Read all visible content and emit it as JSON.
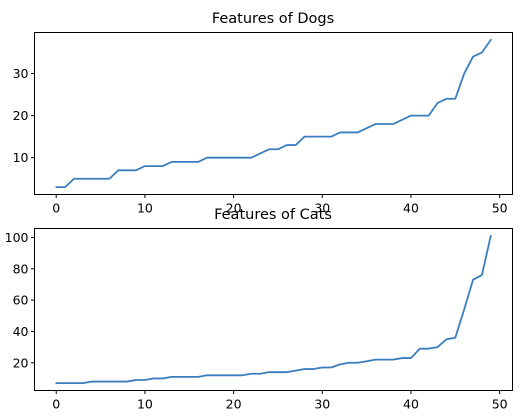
{
  "chart_data": [
    {
      "type": "line",
      "title": "Features of Dogs",
      "xlabel": "",
      "ylabel": "",
      "xlim": [
        -2.45,
        51.45
      ],
      "ylim": [
        1.25,
        39.75
      ],
      "xticks": [
        0,
        10,
        20,
        30,
        40,
        50
      ],
      "yticks": [
        10,
        20,
        30
      ],
      "grid": false,
      "color": "#3a7ebf",
      "x": [
        0,
        1,
        2,
        3,
        4,
        5,
        6,
        7,
        8,
        9,
        10,
        11,
        12,
        13,
        14,
        15,
        16,
        17,
        18,
        19,
        20,
        21,
        22,
        23,
        24,
        25,
        26,
        27,
        28,
        29,
        30,
        31,
        32,
        33,
        34,
        35,
        36,
        37,
        38,
        39,
        40,
        41,
        42,
        43,
        44,
        45,
        46,
        47,
        48,
        49
      ],
      "values": [
        3,
        3,
        5,
        5,
        5,
        5,
        5,
        7,
        7,
        7,
        8,
        8,
        8,
        9,
        9,
        9,
        9,
        10,
        10,
        10,
        10,
        10,
        10,
        11,
        12,
        12,
        13,
        13,
        15,
        15,
        15,
        15,
        16,
        16,
        16,
        17,
        18,
        18,
        18,
        19,
        20,
        20,
        20,
        23,
        24,
        24,
        30,
        34,
        35,
        38
      ]
    },
    {
      "type": "line",
      "title": "Features of Cats",
      "xlabel": "",
      "ylabel": "",
      "xlim": [
        -2.45,
        51.45
      ],
      "ylim": [
        2.3,
        105.7
      ],
      "xticks": [
        0,
        10,
        20,
        30,
        40,
        50
      ],
      "yticks": [
        20,
        40,
        60,
        80,
        100
      ],
      "grid": false,
      "color": "#3a7ebf",
      "x": [
        0,
        1,
        2,
        3,
        4,
        5,
        6,
        7,
        8,
        9,
        10,
        11,
        12,
        13,
        14,
        15,
        16,
        17,
        18,
        19,
        20,
        21,
        22,
        23,
        24,
        25,
        26,
        27,
        28,
        29,
        30,
        31,
        32,
        33,
        34,
        35,
        36,
        37,
        38,
        39,
        40,
        41,
        42,
        43,
        44,
        45,
        46,
        47,
        48,
        49
      ],
      "values": [
        7,
        7,
        7,
        7,
        8,
        8,
        8,
        8,
        8,
        9,
        9,
        10,
        10,
        11,
        11,
        11,
        11,
        12,
        12,
        12,
        12,
        12,
        13,
        13,
        14,
        14,
        14,
        15,
        16,
        16,
        17,
        17,
        19,
        20,
        20,
        21,
        22,
        22,
        22,
        23,
        23,
        29,
        29,
        30,
        35,
        36,
        54,
        73,
        76,
        101
      ]
    }
  ]
}
